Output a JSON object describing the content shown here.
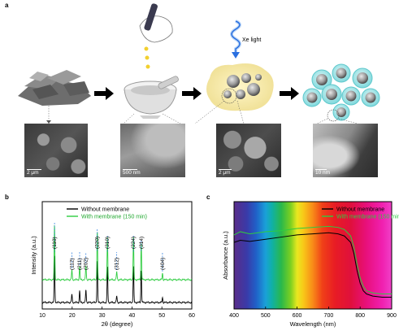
{
  "panel_a": {
    "letter": "a",
    "xe_light_label": "Xe light",
    "images": [
      {
        "scale_label": "2 μm"
      },
      {
        "scale_label": "500 nm"
      },
      {
        "scale_label": "2 μm"
      },
      {
        "scale_label": "10 nm"
      }
    ]
  },
  "panel_b": {
    "letter": "b",
    "chart_data": {
      "type": "line",
      "xlabel": "2θ (degree)",
      "ylabel": "Intensity (a.u.)",
      "xlim": [
        10,
        60
      ],
      "xticks": [
        10,
        20,
        30,
        40,
        50,
        60
      ],
      "legend_position": "top-right",
      "series": [
        {
          "name": "Without membrane",
          "color": "#000000",
          "peaks": [
            [
              14.1,
              0.58
            ],
            [
              19.9,
              0.1
            ],
            [
              22.5,
              0.14
            ],
            [
              24.6,
              0.16
            ],
            [
              28.4,
              0.52
            ],
            [
              31.8,
              0.44
            ],
            [
              34.9,
              0.08
            ],
            [
              40.5,
              0.44
            ],
            [
              43.1,
              0.4
            ],
            [
              50.2,
              0.06
            ]
          ]
        },
        {
          "name": "With membrane (150 min)",
          "color": "#2ecc40",
          "peaks": [
            [
              14.1,
              0.68
            ],
            [
              19.9,
              0.12
            ],
            [
              22.5,
              0.16
            ],
            [
              24.6,
              0.18
            ],
            [
              28.4,
              0.6
            ],
            [
              31.8,
              0.52
            ],
            [
              34.9,
              0.1
            ],
            [
              40.5,
              0.52
            ],
            [
              43.1,
              0.46
            ],
            [
              50.2,
              0.08
            ]
          ]
        }
      ],
      "annotations": [
        {
          "x": 14.1,
          "label": "(110)"
        },
        {
          "x": 19.9,
          "label": "(112)"
        },
        {
          "x": 22.5,
          "label": "(211)"
        },
        {
          "x": 24.6,
          "label": "(202)"
        },
        {
          "x": 28.4,
          "label": "(220)"
        },
        {
          "x": 31.8,
          "label": "(310)"
        },
        {
          "x": 34.9,
          "label": "(312)"
        },
        {
          "x": 40.5,
          "label": "(224)"
        },
        {
          "x": 43.1,
          "label": "(314)"
        },
        {
          "x": 50.2,
          "label": "(404)"
        }
      ]
    }
  },
  "panel_c": {
    "letter": "c",
    "chart_data": {
      "type": "line",
      "xlabel": "Wavelength (nm)",
      "ylabel": "Absorbance (a.u.)",
      "xlim": [
        400,
        900
      ],
      "xticks": [
        400,
        500,
        600,
        700,
        800,
        900
      ],
      "legend_position": "top-right",
      "series": [
        {
          "name": "Without membrane",
          "color": "#000000",
          "x": [
            400,
            420,
            450,
            500,
            550,
            600,
            650,
            700,
            730,
            750,
            770,
            780,
            790,
            800,
            810,
            820,
            840,
            870,
            900
          ],
          "y": [
            0.62,
            0.64,
            0.63,
            0.65,
            0.67,
            0.69,
            0.7,
            0.71,
            0.7,
            0.68,
            0.62,
            0.52,
            0.36,
            0.24,
            0.17,
            0.14,
            0.12,
            0.11,
            0.11
          ]
        },
        {
          "name": "With membrane (150 min)",
          "color": "#2ecc40",
          "x": [
            400,
            420,
            450,
            500,
            550,
            600,
            650,
            700,
            730,
            750,
            770,
            780,
            790,
            800,
            810,
            820,
            840,
            870,
            900
          ],
          "y": [
            0.69,
            0.72,
            0.7,
            0.72,
            0.73,
            0.75,
            0.76,
            0.77,
            0.76,
            0.74,
            0.68,
            0.58,
            0.42,
            0.29,
            0.21,
            0.17,
            0.15,
            0.14,
            0.14
          ]
        }
      ]
    }
  }
}
